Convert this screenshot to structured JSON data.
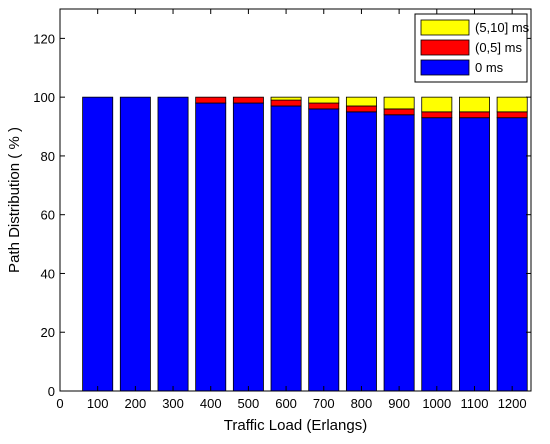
{
  "chart_data": {
    "type": "bar",
    "stacked": true,
    "xlabel": "Traffic Load (Erlangs)",
    "ylabel": "Path Distribution ( % )",
    "xlim": [
      0,
      1250
    ],
    "ylim": [
      0,
      130
    ],
    "x_ticks": [
      0,
      100,
      200,
      300,
      400,
      500,
      600,
      700,
      800,
      900,
      1000,
      1100,
      1200
    ],
    "y_ticks": [
      0,
      20,
      40,
      60,
      80,
      100,
      120
    ],
    "grid": false,
    "legend_position": "top-right",
    "categories": [
      100,
      200,
      300,
      400,
      500,
      600,
      700,
      800,
      900,
      1000,
      1100,
      1200
    ],
    "series": [
      {
        "name": "0 ms",
        "color": "#0000ff",
        "values": [
          100,
          100,
          100,
          98,
          98,
          97,
          96,
          95,
          94,
          93,
          93,
          93
        ]
      },
      {
        "name": "(0,5] ms",
        "color": "#ff0000",
        "values": [
          0,
          0,
          0,
          2,
          2,
          2,
          2,
          2,
          2,
          2,
          2,
          2
        ]
      },
      {
        "name": "(5,10] ms",
        "color": "#ffff00",
        "values": [
          0,
          0,
          0,
          0,
          0,
          1,
          2,
          3,
          4,
          5,
          5,
          5
        ]
      }
    ],
    "legend_order": [
      "(5,10] ms",
      "(0,5] ms",
      "0 ms"
    ]
  }
}
